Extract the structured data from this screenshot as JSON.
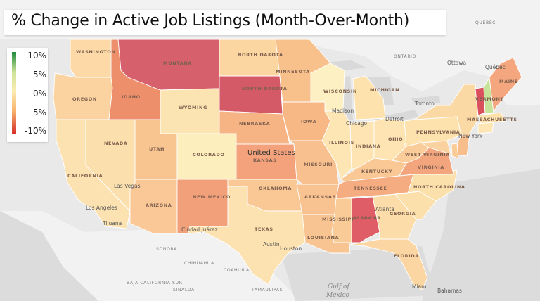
{
  "title": "% Change in Active Job Listings (Month-Over-Month)",
  "legend": {
    "labels": [
      "10%",
      "5%",
      "0%",
      "-5%",
      "-10%"
    ],
    "colors": [
      "#1e8a3d",
      "#cfe39a",
      "#fbecb0",
      "#f7b36e",
      "#d7302a"
    ]
  },
  "country_label": "United States",
  "states": [
    {
      "name": "Washington",
      "label": "WASHINGTON",
      "color": "#fcd9a6"
    },
    {
      "name": "Oregon",
      "label": "OREGON",
      "color": "#fbd3a0"
    },
    {
      "name": "California",
      "label": "CALIFORNIA",
      "color": "#fbe2b0"
    },
    {
      "name": "Nevada",
      "label": "NEVADA",
      "color": "#fbe0ad"
    },
    {
      "name": "Idaho",
      "label": "IDAHO",
      "color": "#ee8f6c"
    },
    {
      "name": "Montana",
      "label": "MONTANA",
      "color": "#d6606c"
    },
    {
      "name": "Wyoming",
      "label": "WYOMING",
      "color": "#fce4b2"
    },
    {
      "name": "Utah",
      "label": "UTAH",
      "color": "#f8c490"
    },
    {
      "name": "Arizona",
      "label": "ARIZONA",
      "color": "#f9c896"
    },
    {
      "name": "Colorado",
      "label": "COLORADO",
      "color": "#fdeebd"
    },
    {
      "name": "New Mexico",
      "label": "NEW MEXICO",
      "color": "#f2a07a"
    },
    {
      "name": "North Dakota",
      "label": "NORTH DAKOTA",
      "color": "#fbd6a1"
    },
    {
      "name": "South Dakota",
      "label": "SOUTH DAKOTA",
      "color": "#d35a66"
    },
    {
      "name": "Nebraska",
      "label": "NEBRASKA",
      "color": "#f6b484"
    },
    {
      "name": "Kansas",
      "label": "KANSAS",
      "color": "#f3a27c"
    },
    {
      "name": "Oklahoma",
      "label": "OKLAHOMA",
      "color": "#f9c895"
    },
    {
      "name": "Texas",
      "label": "TEXAS",
      "color": "#fce2b0"
    },
    {
      "name": "Minnesota",
      "label": "MINNESOTA",
      "color": "#f8c18c"
    },
    {
      "name": "Iowa",
      "label": "IOWA",
      "color": "#f7b886"
    },
    {
      "name": "Missouri",
      "label": "MISSOURI",
      "color": "#f8c08e"
    },
    {
      "name": "Arkansas",
      "label": "ARKANSAS",
      "color": "#f8c391"
    },
    {
      "name": "Louisiana",
      "label": "LOUISIANA",
      "color": "#f8c592"
    },
    {
      "name": "Wisconsin",
      "label": "WISCONSIN",
      "color": "#fdf0c2"
    },
    {
      "name": "Illinois",
      "label": "ILLINOIS",
      "color": "#fde6b4"
    },
    {
      "name": "Michigan",
      "label": "MICHIGAN",
      "color": "#fde2ae"
    },
    {
      "name": "Indiana",
      "label": "INDIANA",
      "color": "#fde4b2"
    },
    {
      "name": "Ohio",
      "label": "OHIO",
      "color": "#fde4b2"
    },
    {
      "name": "Kentucky",
      "label": "KENTUCKY",
      "color": "#f9c895"
    },
    {
      "name": "Tennessee",
      "label": "TENNESSEE",
      "color": "#f5ac80"
    },
    {
      "name": "Mississippi",
      "label": "MISSISSIPPI",
      "color": "#f9cb97"
    },
    {
      "name": "Alabama",
      "label": "ALABAMA",
      "color": "#de5d66"
    },
    {
      "name": "Georgia",
      "label": "GEORGIA",
      "color": "#fcdda9"
    },
    {
      "name": "Florida",
      "label": "FLORIDA",
      "color": "#fbd6a2"
    },
    {
      "name": "South Carolina",
      "label": "",
      "color": "#fce0ac"
    },
    {
      "name": "North Carolina",
      "label": "NORTH CAROLINA",
      "color": "#fce0ac"
    },
    {
      "name": "Virginia",
      "label": "VIRGINIA",
      "color": "#f3a57e"
    },
    {
      "name": "West Virginia",
      "label": "WEST VIRGINIA",
      "color": "#f9cc99"
    },
    {
      "name": "Pennsylvania",
      "label": "PENNSYLVANIA",
      "color": "#fde2ae"
    },
    {
      "name": "New York",
      "label": "",
      "color": "#fbd9a4"
    },
    {
      "name": "Maryland",
      "label": "",
      "color": "#fad2a0"
    },
    {
      "name": "New Jersey",
      "label": "",
      "color": "#f7bd8b"
    },
    {
      "name": "Delaware",
      "label": "",
      "color": "#f9cb97"
    },
    {
      "name": "Vermont",
      "label": "VERMONT",
      "color": "#d8515c"
    },
    {
      "name": "New Hampshire",
      "label": "",
      "color": "#c7e39a"
    },
    {
      "name": "Massachusetts",
      "label": "MASSACHUSETTS",
      "color": "#fde2ae"
    },
    {
      "name": "Connecticut",
      "label": "",
      "color": "#fde6b4"
    },
    {
      "name": "Maine",
      "label": "MAINE",
      "color": "#f4a77e"
    }
  ],
  "cities": [
    "Los Angeles",
    "Las Vegas",
    "Tijuana",
    "Ciudad Juárez",
    "Austin",
    "Houston",
    "Chicago",
    "Madison",
    "Detroit",
    "Atlanta",
    "New York",
    "Toronto",
    "Ottawa",
    "Québec",
    "Miami",
    "Bahamas"
  ],
  "regions": [
    "QUÉBEC",
    "ONTARIO",
    "SONORA",
    "CHIHUAHUA",
    "COAHUILA",
    "BAJA CALIFORNIA SUR",
    "SINALOA",
    "TAMAULIPAS"
  ],
  "water": [
    "Gulf of",
    "Mexico"
  ]
}
